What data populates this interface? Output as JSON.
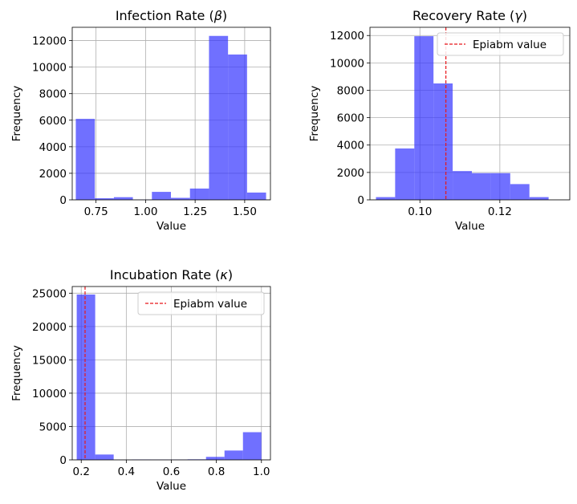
{
  "colors": {
    "bar": "#3333ff",
    "bar_opacity": 0.7,
    "reference_line": "#e8161b",
    "grid": "#b0b0b0"
  },
  "chart_data": [
    {
      "type": "bar",
      "title_main": "Infection Rate (",
      "title_symbol": "β",
      "title_close": ")",
      "xlabel": "Value",
      "ylabel": "Frequency",
      "xlim": [
        0.63,
        1.63
      ],
      "ylim": [
        0,
        13000
      ],
      "xticks": [
        0.75,
        1.0,
        1.25,
        1.5
      ],
      "xtick_labels": [
        "0.75",
        "1.00",
        "1.25",
        "1.50"
      ],
      "yticks": [
        0,
        2000,
        4000,
        6000,
        8000,
        10000,
        12000
      ],
      "ytick_labels": [
        "0",
        "2000",
        "4000",
        "6000",
        "8000",
        "10000",
        "12000"
      ],
      "grid": true,
      "bins": [
        {
          "x0": 0.648,
          "x1": 0.744,
          "value": 6100
        },
        {
          "x0": 0.744,
          "x1": 0.84,
          "value": 120
        },
        {
          "x0": 0.84,
          "x1": 0.936,
          "value": 200
        },
        {
          "x0": 0.936,
          "x1": 1.032,
          "value": 20
        },
        {
          "x0": 1.032,
          "x1": 1.128,
          "value": 600
        },
        {
          "x0": 1.128,
          "x1": 1.224,
          "value": 150
        },
        {
          "x0": 1.224,
          "x1": 1.32,
          "value": 850
        },
        {
          "x0": 1.32,
          "x1": 1.416,
          "value": 12350
        },
        {
          "x0": 1.416,
          "x1": 1.512,
          "value": 10950
        },
        {
          "x0": 1.512,
          "x1": 1.608,
          "value": 550
        }
      ]
    },
    {
      "type": "bar",
      "title_main": "Recovery Rate (",
      "title_symbol": "γ",
      "title_close": ")",
      "xlabel": "Value",
      "ylabel": "Frequency",
      "xlim": [
        0.0875,
        0.1375
      ],
      "ylim": [
        0,
        12600
      ],
      "xticks": [
        0.1,
        0.12
      ],
      "xtick_labels": [
        "0.10",
        "0.12"
      ],
      "yticks": [
        0,
        2000,
        4000,
        6000,
        8000,
        10000,
        12000
      ],
      "ytick_labels": [
        "0",
        "2000",
        "4000",
        "6000",
        "8000",
        "10000",
        "12000"
      ],
      "grid": true,
      "reference_line": {
        "x": 0.1065,
        "label": "Epiabm value"
      },
      "legend_position": "top-right",
      "bins": [
        {
          "x0": 0.089,
          "x1": 0.0938,
          "value": 200
        },
        {
          "x0": 0.0938,
          "x1": 0.0986,
          "value": 3750
        },
        {
          "x0": 0.0986,
          "x1": 0.1034,
          "value": 11950
        },
        {
          "x0": 0.1034,
          "x1": 0.1082,
          "value": 8500
        },
        {
          "x0": 0.1082,
          "x1": 0.113,
          "value": 2100
        },
        {
          "x0": 0.113,
          "x1": 0.1178,
          "value": 1950
        },
        {
          "x0": 0.1178,
          "x1": 0.1226,
          "value": 1950
        },
        {
          "x0": 0.1226,
          "x1": 0.1274,
          "value": 1150
        },
        {
          "x0": 0.1274,
          "x1": 0.1322,
          "value": 200
        }
      ]
    },
    {
      "type": "bar",
      "title_main": "Incubation Rate (",
      "title_symbol": "κ",
      "title_close": ")",
      "xlabel": "Value",
      "ylabel": "Frequency",
      "xlim": [
        0.16,
        1.04
      ],
      "ylim": [
        0,
        26000
      ],
      "xticks": [
        0.2,
        0.4,
        0.6,
        0.8,
        1.0
      ],
      "xtick_labels": [
        "0.2",
        "0.4",
        "0.6",
        "0.8",
        "1.0"
      ],
      "yticks": [
        0,
        5000,
        10000,
        15000,
        20000,
        25000
      ],
      "ytick_labels": [
        "0",
        "5000",
        "10000",
        "15000",
        "20000",
        "25000"
      ],
      "grid": true,
      "reference_line": {
        "x": 0.217,
        "label": "Epiabm value"
      },
      "legend_position": "top-right",
      "bins": [
        {
          "x0": 0.18,
          "x1": 0.262,
          "value": 24800
        },
        {
          "x0": 0.262,
          "x1": 0.344,
          "value": 800
        },
        {
          "x0": 0.344,
          "x1": 0.426,
          "value": 20
        },
        {
          "x0": 0.426,
          "x1": 0.508,
          "value": 60
        },
        {
          "x0": 0.508,
          "x1": 0.59,
          "value": 40
        },
        {
          "x0": 0.59,
          "x1": 0.672,
          "value": 40
        },
        {
          "x0": 0.672,
          "x1": 0.754,
          "value": 80
        },
        {
          "x0": 0.754,
          "x1": 0.836,
          "value": 450
        },
        {
          "x0": 0.836,
          "x1": 0.918,
          "value": 1400
        },
        {
          "x0": 0.918,
          "x1": 1.0,
          "value": 4150
        }
      ]
    }
  ]
}
